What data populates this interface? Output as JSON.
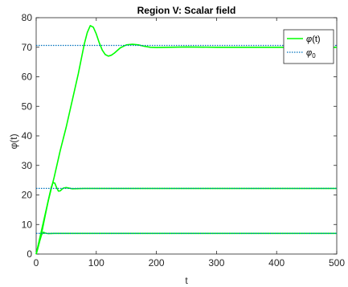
{
  "chart_data": {
    "type": "line",
    "title": "Region V: Scalar field",
    "xlabel": "t",
    "ylabel_main": "φ(t)",
    "xlim": [
      0,
      500
    ],
    "ylim": [
      0,
      80
    ],
    "xticks": [
      0,
      100,
      200,
      300,
      400,
      500
    ],
    "yticks": [
      0,
      10,
      20,
      30,
      40,
      50,
      60,
      70,
      80
    ],
    "grid": false,
    "legend_position": "top-right",
    "colors": {
      "phi": "#00ff00",
      "phi0": "#0072bd",
      "axis": "#262626"
    },
    "legend": [
      {
        "key": "phi",
        "base": "φ",
        "suffix": "(t)",
        "sub": ""
      },
      {
        "key": "phi0",
        "base": "φ",
        "suffix": "",
        "sub": "0"
      }
    ],
    "series": [
      {
        "name": "φ(t)",
        "color": "#00ff00",
        "style": "solid",
        "x": [
          0,
          10,
          20,
          30,
          40,
          50,
          60,
          70,
          80,
          85,
          90,
          95,
          100,
          105,
          110,
          115,
          120,
          125,
          130,
          140,
          150,
          160,
          170,
          180,
          190,
          200,
          220,
          250,
          300,
          400,
          500
        ],
        "y": [
          0,
          9,
          18,
          26,
          35,
          43,
          52,
          61,
          71,
          75,
          77.3,
          76.8,
          74.5,
          71.5,
          69.0,
          67.5,
          67.0,
          67.3,
          68.0,
          69.8,
          70.8,
          71.0,
          70.8,
          70.3,
          70.0,
          69.9,
          70.0,
          70.1,
          70.0,
          70.0,
          70.0
        ]
      },
      {
        "name": "φ(t)",
        "color": "#00ff00",
        "style": "solid",
        "x": [
          0,
          5,
          10,
          15,
          20,
          25,
          28,
          31,
          34,
          37,
          40,
          45,
          50,
          60,
          80,
          100,
          500
        ],
        "y": [
          0,
          4,
          8,
          13,
          18,
          22.5,
          24.2,
          24.0,
          22.5,
          21.3,
          21.4,
          22.3,
          22.5,
          22.1,
          22.2,
          22.2,
          22.2
        ]
      },
      {
        "name": "φ(t)",
        "color": "#00ff00",
        "style": "solid",
        "x": [
          0,
          3,
          6,
          9,
          12,
          15,
          20,
          30,
          50,
          500
        ],
        "y": [
          0,
          2,
          4.5,
          6.5,
          7.4,
          7.1,
          6.9,
          7.0,
          7.0,
          7.0
        ]
      },
      {
        "name": "φ0",
        "color": "#0072bd",
        "style": "dotted",
        "x": [
          0,
          500
        ],
        "y": [
          70.6,
          70.6
        ]
      },
      {
        "name": "φ0",
        "color": "#0072bd",
        "style": "dotted",
        "x": [
          0,
          500
        ],
        "y": [
          22.2,
          22.2
        ]
      },
      {
        "name": "φ0",
        "color": "#0072bd",
        "style": "dotted",
        "x": [
          0,
          500
        ],
        "y": [
          7.0,
          7.0
        ]
      }
    ]
  }
}
